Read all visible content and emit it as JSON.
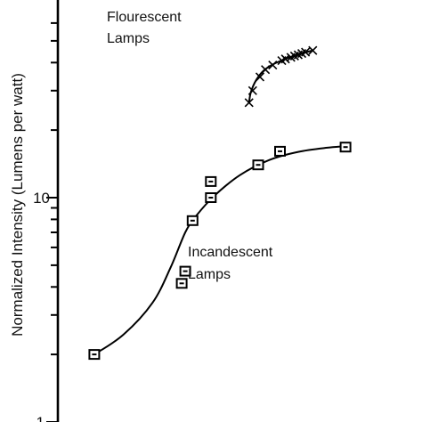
{
  "chart_data": {
    "type": "scatter",
    "ylabel": "Normalized Intensity (Lumens per watt)",
    "y_scale": "log",
    "ylim": [
      1,
      50
    ],
    "y_tick_labels": [
      {
        "value": 10,
        "label": "10"
      },
      {
        "value": 1,
        "label": "1"
      }
    ],
    "grid": false,
    "series": [
      {
        "name": "Incandescent Lamps",
        "marker": "square",
        "x": [
          0.1,
          0.34,
          0.35,
          0.37,
          0.42,
          0.42,
          0.55,
          0.61,
          0.79
        ],
        "values": [
          2.0,
          4.15,
          4.7,
          7.9,
          10.0,
          11.8,
          14.0,
          16.1,
          16.8
        ],
        "trend": {
          "x": [
            0.1,
            0.18,
            0.26,
            0.31,
            0.35,
            0.38,
            0.43,
            0.5,
            0.58,
            0.66,
            0.74,
            0.8
          ],
          "values": [
            2.0,
            2.45,
            3.4,
            4.9,
            7.0,
            8.3,
            10.2,
            12.6,
            14.7,
            16.0,
            16.7,
            17.0
          ]
        }
      },
      {
        "name": "Flourescent Lamps",
        "marker": "x",
        "x": [
          0.525,
          0.535,
          0.555,
          0.57,
          0.59,
          0.615,
          0.625,
          0.64,
          0.65,
          0.66,
          0.67,
          0.68,
          0.7
        ],
        "values": [
          26.5,
          30.0,
          34.5,
          37.2,
          39.0,
          40.8,
          41.5,
          42.2,
          42.8,
          43.3,
          43.9,
          44.5,
          45.3
        ],
        "trend": {
          "x": [
            0.525,
            0.53,
            0.545,
            0.565,
            0.59,
            0.62,
            0.66,
            0.7
          ],
          "values": [
            26.5,
            29.5,
            33.5,
            36.8,
            39.2,
            41.2,
            43.5,
            45.3
          ]
        }
      }
    ],
    "annotations": [
      {
        "text": "Flourescent",
        "series": 1
      },
      {
        "text": "Lamps",
        "series": 1
      },
      {
        "text": "Incandescent",
        "series": 0
      },
      {
        "text": "Lamps",
        "series": 0
      }
    ]
  }
}
